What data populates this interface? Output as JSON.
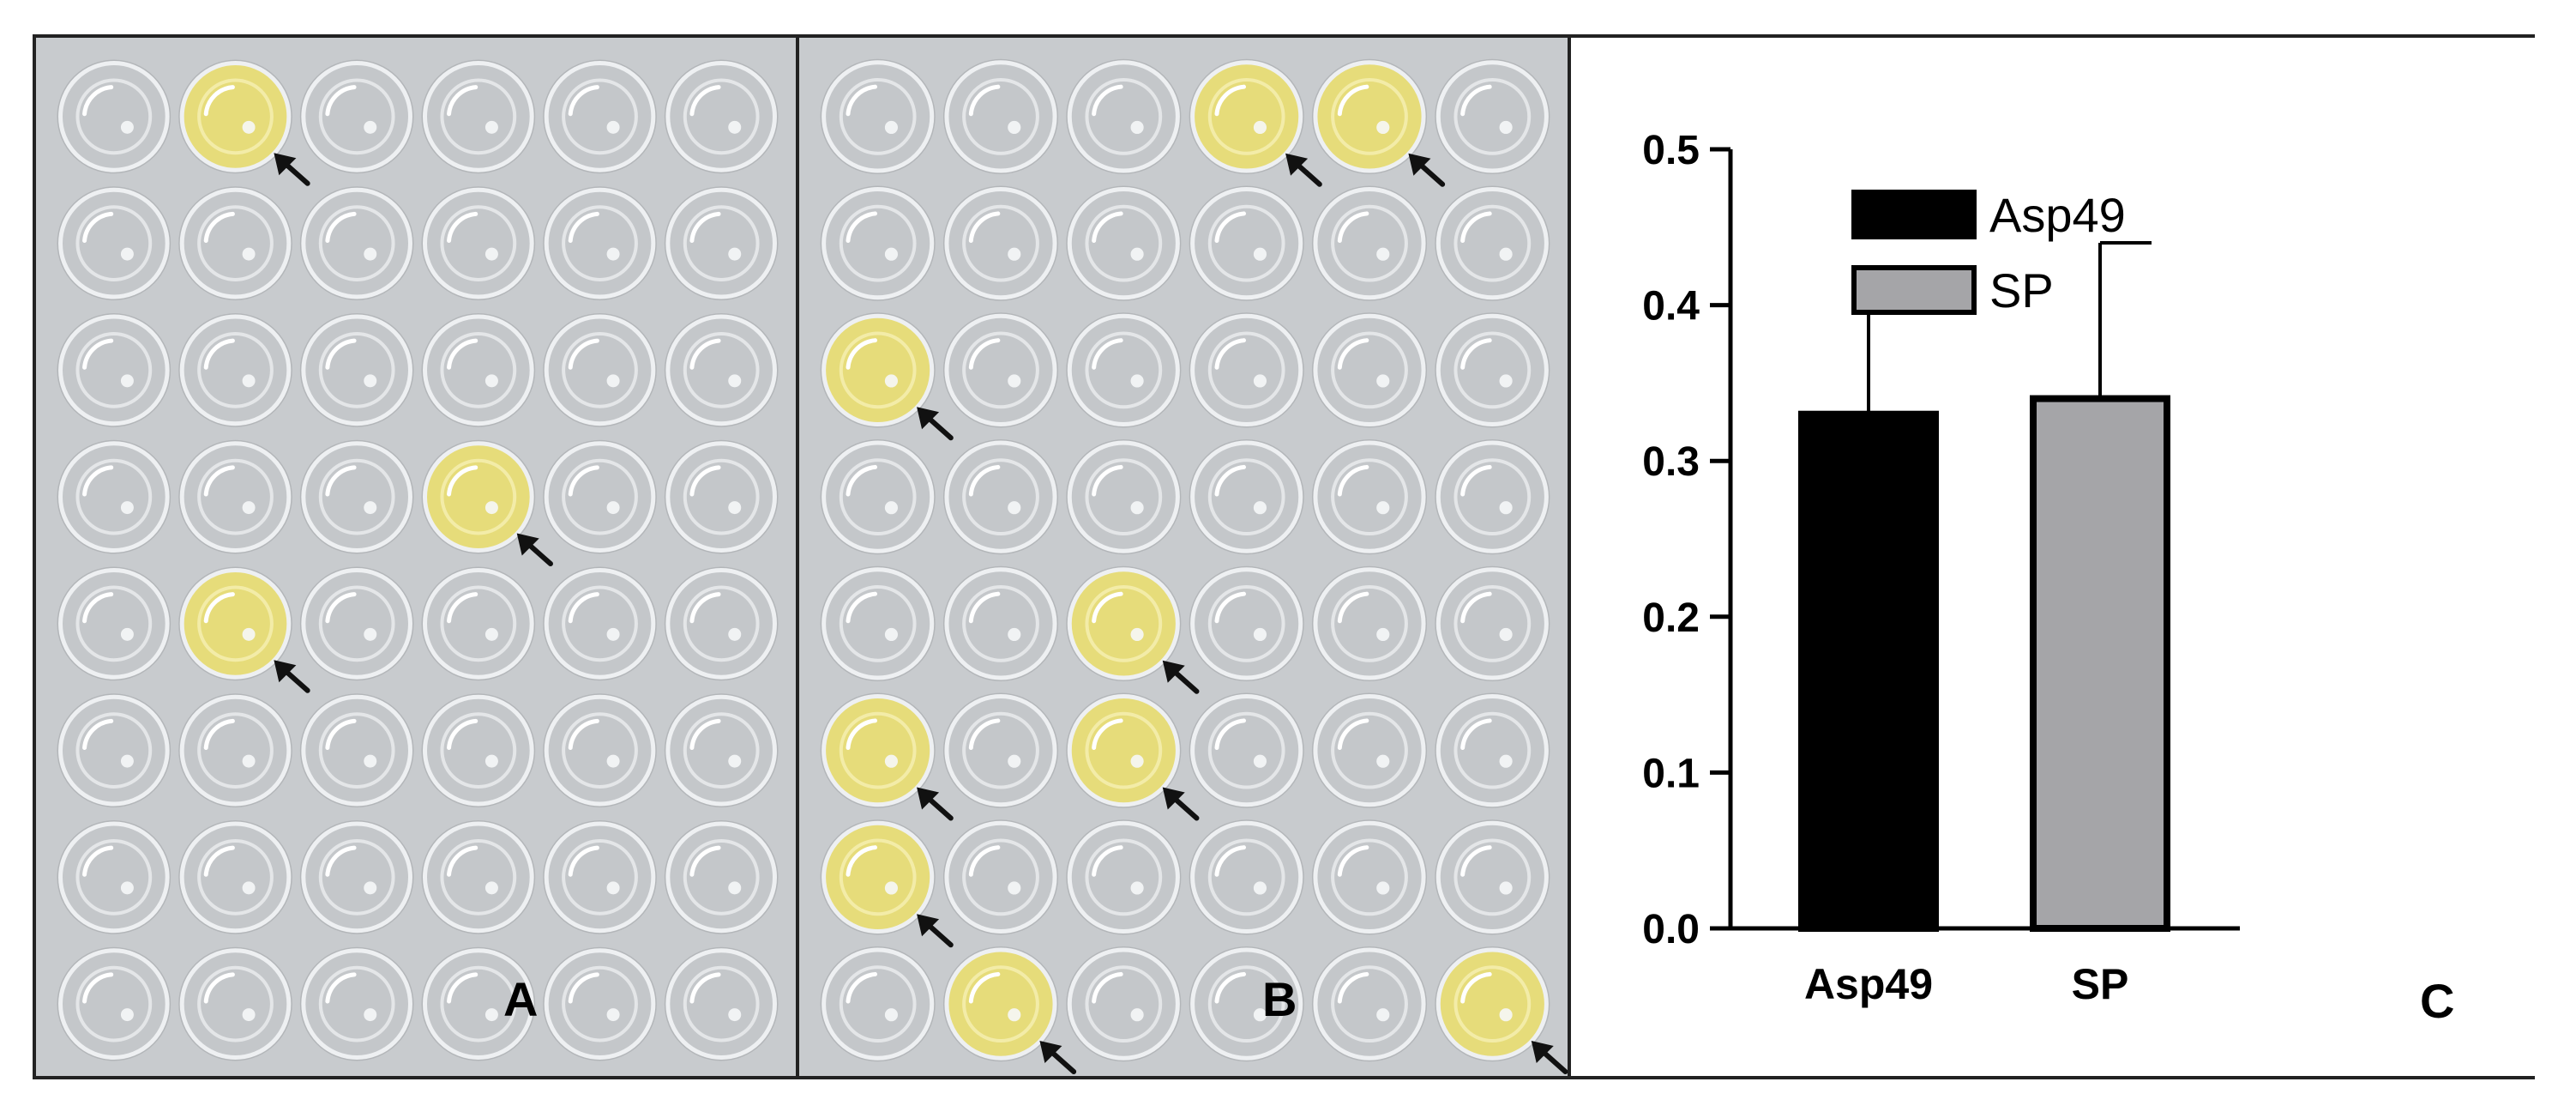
{
  "panels": {
    "a": {
      "letter": "A"
    },
    "b": {
      "letter": "B"
    },
    "c": {
      "letter": "C"
    }
  },
  "plates": {
    "rows": 8,
    "cols": 6,
    "clear_color": "#c4c7ca",
    "positive_color": "#e6dc7a",
    "a_positive_wells": [
      [
        0,
        1
      ],
      [
        3,
        3
      ],
      [
        4,
        1
      ]
    ],
    "b_positive_wells": [
      [
        0,
        3
      ],
      [
        0,
        4
      ],
      [
        2,
        0
      ],
      [
        4,
        2
      ],
      [
        5,
        0
      ],
      [
        5,
        2
      ],
      [
        6,
        0
      ],
      [
        7,
        1
      ],
      [
        7,
        5
      ]
    ]
  },
  "chart_data": {
    "type": "bar",
    "categories": [
      "Asp49",
      "SP"
    ],
    "values": [
      0.33,
      0.34
    ],
    "error_upper": [
      0.4,
      0.44
    ],
    "colors": [
      "#000000",
      "#a5a5a8"
    ],
    "legend": [
      "Asp49",
      "SP"
    ],
    "legend_position": "top-left",
    "ylim": [
      0.0,
      0.5
    ],
    "yticks": [
      "0.0",
      "0.1",
      "0.2",
      "0.3",
      "0.4",
      "0.5"
    ],
    "ytick_values": [
      0.0,
      0.1,
      0.2,
      0.3,
      0.4,
      0.5
    ],
    "grid": false
  }
}
